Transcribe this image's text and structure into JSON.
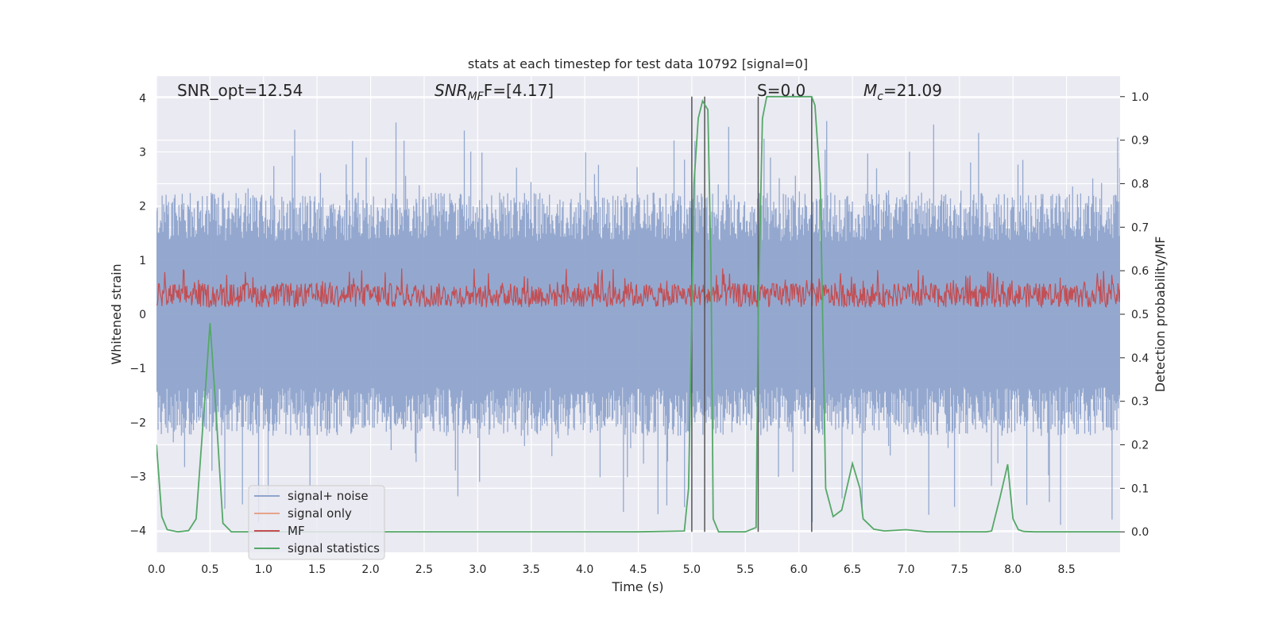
{
  "chart_data": {
    "type": "line",
    "title": "stats at each timestep for test data 10792 [signal=0]",
    "xlabel": "Time (s)",
    "ylabel": "Whitened strain",
    "y2label": "Detection probability/MF",
    "xlim": [
      0.0,
      9.0
    ],
    "ylim": [
      -4.4,
      4.4
    ],
    "y2lim": [
      -0.047,
      1.047
    ],
    "grid": true,
    "legend_position": "lower-left",
    "x_ticks": [
      "0.0",
      "0.5",
      "1.0",
      "1.5",
      "2.0",
      "2.5",
      "3.0",
      "3.5",
      "4.0",
      "4.5",
      "5.0",
      "5.5",
      "6.0",
      "6.5",
      "7.0",
      "7.5",
      "8.0",
      "8.5"
    ],
    "y_ticks": [
      "4",
      "3",
      "2",
      "1",
      "0",
      "−1",
      "−2",
      "−3",
      "−4"
    ],
    "y2_ticks": [
      "1.0",
      "0.9",
      "0.8",
      "0.7",
      "0.6",
      "0.5",
      "0.4",
      "0.3",
      "0.2",
      "0.1",
      "0.0"
    ],
    "annotations": [
      {
        "id": "snr-opt",
        "text": "SNR_opt=12.54"
      },
      {
        "id": "snr-mf",
        "text": "SNR",
        "sub": "MF",
        "suffix": "F=[4.17]"
      },
      {
        "id": "s-stat",
        "text": "S=0.0"
      },
      {
        "id": "mc",
        "text": "M",
        "sub": "c",
        "suffix": "=21.09"
      }
    ],
    "series": [
      {
        "name": "signal+ noise",
        "color": "#8fa4cc",
        "axis": "left",
        "envelope": {
          "typical_abs": 1.5,
          "max": 3.6,
          "min": -4.0
        }
      },
      {
        "name": "signal only",
        "color": "#e6a48c",
        "axis": "left",
        "values": []
      },
      {
        "name": "MF",
        "color": "#c44e52",
        "axis": "left",
        "envelope": {
          "min": 0.0,
          "max": 0.85,
          "mean": 0.35
        }
      },
      {
        "name": "signal statistics",
        "color": "#55a868",
        "axis": "right",
        "x": [
          0.0,
          0.05,
          0.1,
          0.2,
          0.3,
          0.37,
          0.45,
          0.5,
          0.55,
          0.62,
          0.7,
          0.8,
          0.9,
          1.0,
          2.0,
          3.0,
          4.0,
          4.5,
          4.93,
          4.97,
          5.0,
          5.02,
          5.06,
          5.1,
          5.15,
          5.18,
          5.2,
          5.25,
          5.3,
          5.4,
          5.5,
          5.6,
          5.62,
          5.66,
          5.7,
          5.8,
          6.0,
          6.12,
          6.15,
          6.2,
          6.25,
          6.32,
          6.4,
          6.5,
          6.57,
          6.6,
          6.7,
          6.8,
          7.0,
          7.2,
          7.5,
          7.75,
          7.8,
          7.88,
          7.95,
          8.0,
          8.05,
          8.1,
          8.2,
          9.0
        ],
        "values": [
          0.2,
          0.035,
          0.005,
          0.0,
          0.003,
          0.03,
          0.3,
          0.48,
          0.3,
          0.02,
          0.0,
          0.0,
          0.0,
          0.0,
          0.0,
          0.0,
          0.0,
          0.0,
          0.002,
          0.1,
          0.5,
          0.8,
          0.95,
          0.99,
          0.97,
          0.6,
          0.03,
          0.0,
          0.0,
          0.0,
          0.0,
          0.01,
          0.5,
          0.95,
          1.0,
          1.0,
          1.0,
          1.0,
          0.98,
          0.8,
          0.1,
          0.035,
          0.05,
          0.157,
          0.1,
          0.03,
          0.006,
          0.002,
          0.005,
          0.0,
          0.0,
          0.0,
          0.002,
          0.08,
          0.155,
          0.03,
          0.005,
          0.001,
          0.0,
          0.0
        ]
      }
    ],
    "vlines_x": [
      5.0,
      5.12,
      5.62,
      6.12
    ],
    "vline_color": "#555555"
  }
}
